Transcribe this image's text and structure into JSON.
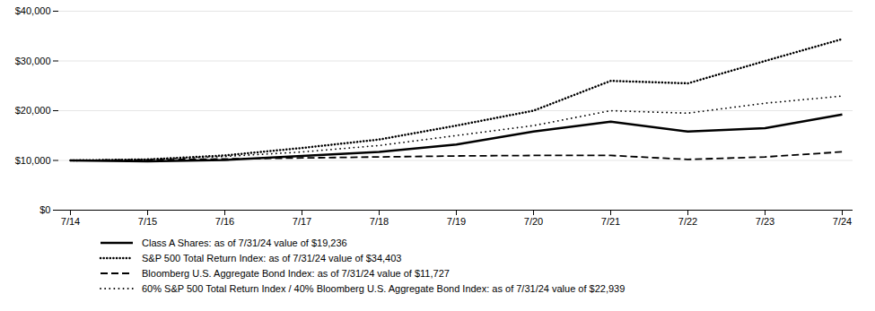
{
  "chart_data": {
    "type": "line",
    "categories": [
      "7/14",
      "7/15",
      "7/16",
      "7/17",
      "7/18",
      "7/19",
      "7/20",
      "7/21",
      "7/22",
      "7/23",
      "7/24"
    ],
    "series": [
      {
        "name": "Class A Shares: as of 7/31/24 value of $19,236",
        "color": "#000000",
        "line_style": "solid",
        "values": [
          10000,
          9800,
          10100,
          10900,
          11700,
          13200,
          15800,
          17800,
          15800,
          16500,
          19236
        ]
      },
      {
        "name": "S&P 500 Total Return Index: as of 7/31/24 value of $34,403",
        "color": "#000000",
        "line_style": "dotted",
        "values": [
          10000,
          10200,
          11000,
          12500,
          14200,
          17000,
          20000,
          26000,
          25500,
          30000,
          34403
        ]
      },
      {
        "name": "Bloomberg U.S. Aggregate Bond Index: as of 7/31/24 value of $11,727",
        "color": "#000000",
        "line_style": "dashed",
        "values": [
          10000,
          10100,
          10300,
          10500,
          10700,
          10900,
          11000,
          11000,
          10200,
          10700,
          11727
        ]
      },
      {
        "name": "60% S&P 500 Total Return Index / 40% Bloomberg U.S. Aggregate Bond Index: as of 7/31/24 value of $22,939",
        "color": "#000000",
        "line_style": "loosely-dotted",
        "values": [
          10000,
          10200,
          10800,
          11700,
          13000,
          15000,
          17000,
          20000,
          19500,
          21500,
          22939
        ]
      }
    ],
    "ylim": [
      0,
      40000
    ],
    "yticks": [
      {
        "value": 0,
        "label": "$0"
      },
      {
        "value": 10000,
        "label": "$10,000"
      },
      {
        "value": 20000,
        "label": "$20,000"
      },
      {
        "value": 30000,
        "label": "$30,000"
      },
      {
        "value": 40000,
        "label": "$40,000"
      }
    ],
    "grid": true,
    "legend": "bottom"
  }
}
